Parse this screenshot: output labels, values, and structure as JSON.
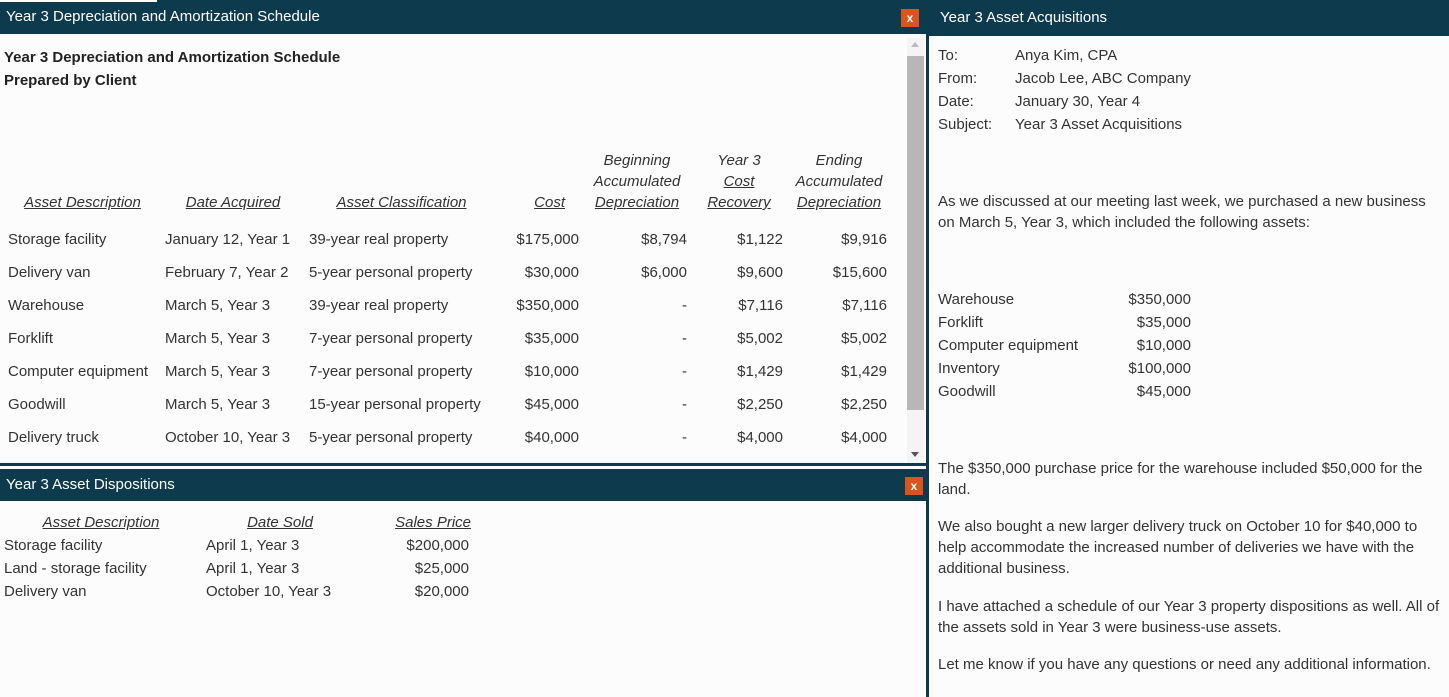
{
  "schedule_window": {
    "title": "Year 3 Depreciation and Amortization Schedule",
    "close_label": "x",
    "heading": "Year 3 Depreciation and Amortization Schedule",
    "subheading": "Prepared by Client",
    "columns": {
      "description": "Asset Description",
      "date_acquired": "Date Acquired",
      "classification": "Asset Classification",
      "cost": "Cost",
      "beg_accum_1": "Beginning",
      "beg_accum_2": "Accumulated",
      "beg_accum_3": "Depreciation",
      "cost_recovery_1": "Year 3",
      "cost_recovery_2": "Cost",
      "cost_recovery_3": "Recovery",
      "end_accum_1": "Ending",
      "end_accum_2": "Accumulated",
      "end_accum_3": "Depreciation"
    },
    "rows": [
      {
        "description": "Storage facility",
        "date": "January 12, Year 1",
        "classification": "39-year real property",
        "cost": "$175,000",
        "beginning": "$8,794",
        "recovery": "$1,122",
        "ending": "$9,916"
      },
      {
        "description": "Delivery van",
        "date": "February 7, Year 2",
        "classification": "5-year personal property",
        "cost": "$30,000",
        "beginning": "$6,000",
        "recovery": "$9,600",
        "ending": "$15,600"
      },
      {
        "description": "Warehouse",
        "date": "March 5, Year 3",
        "classification": "39-year real property",
        "cost": "$350,000",
        "beginning": "-",
        "recovery": "$7,116",
        "ending": "$7,116"
      },
      {
        "description": "Forklift",
        "date": "March 5, Year 3",
        "classification": "7-year personal property",
        "cost": "$35,000",
        "beginning": "-",
        "recovery": "$5,002",
        "ending": "$5,002"
      },
      {
        "description": "Computer equipment",
        "date": "March 5, Year 3",
        "classification": "7-year personal property",
        "cost": "$10,000",
        "beginning": "-",
        "recovery": "$1,429",
        "ending": "$1,429"
      },
      {
        "description": "Goodwill",
        "date": "March 5, Year 3",
        "classification": "15-year personal property",
        "cost": "$45,000",
        "beginning": "-",
        "recovery": "$2,250",
        "ending": "$2,250"
      },
      {
        "description": "Delivery truck",
        "date": "October 10, Year 3",
        "classification": "5-year personal property",
        "cost": "$40,000",
        "beginning": "-",
        "recovery": "$4,000",
        "ending": "$4,000"
      }
    ]
  },
  "dispositions_window": {
    "title": "Year 3 Asset Dispositions",
    "close_label": "x",
    "columns": {
      "description": "Asset Description",
      "date_sold": "Date Sold",
      "sales_price": "Sales Price"
    },
    "rows": [
      {
        "description": "Storage facility",
        "date": "April 1, Year 3",
        "price": "$200,000"
      },
      {
        "description": "Land - storage facility",
        "date": "April 1, Year 3",
        "price": "$25,000"
      },
      {
        "description": "Delivery van",
        "date": "October 10, Year 3",
        "price": "$20,000"
      }
    ]
  },
  "memo_window": {
    "title": "Year 3 Asset Acquisitions",
    "header": [
      {
        "key": "To:",
        "value": "Anya Kim, CPA"
      },
      {
        "key": "From:",
        "value": "Jacob Lee, ABC Company"
      },
      {
        "key": "Date:",
        "value": "January 30, Year 4"
      },
      {
        "key": "Subject:",
        "value": "Year 3 Asset Acquisitions"
      }
    ],
    "intro": "As we discussed at our meeting last week, we purchased a new business on March 5, Year 3, which included the following assets:",
    "assets": [
      {
        "name": "Warehouse",
        "value": "$350,000"
      },
      {
        "name": "Forklift",
        "value": "$35,000"
      },
      {
        "name": "Computer equipment",
        "value": "$10,000"
      },
      {
        "name": "Inventory",
        "value": "$100,000"
      },
      {
        "name": "Goodwill",
        "value": "$45,000"
      }
    ],
    "para_land": "The $350,000 purchase price for the warehouse included $50,000 for the land.",
    "para_truck": "We also bought a new larger delivery truck on October 10 for $40,000 to help accommodate the increased number of deliveries we have with the additional business.",
    "para_dispositions": "I have attached a schedule of our Year 3 property dispositions as well. All of the assets sold in Year 3 were business-use assets.",
    "para_closing": "Let me know if you have any questions or need any additional information."
  },
  "colors": {
    "titlebar": "#0e3a4e",
    "close_button": "#d9541e"
  }
}
